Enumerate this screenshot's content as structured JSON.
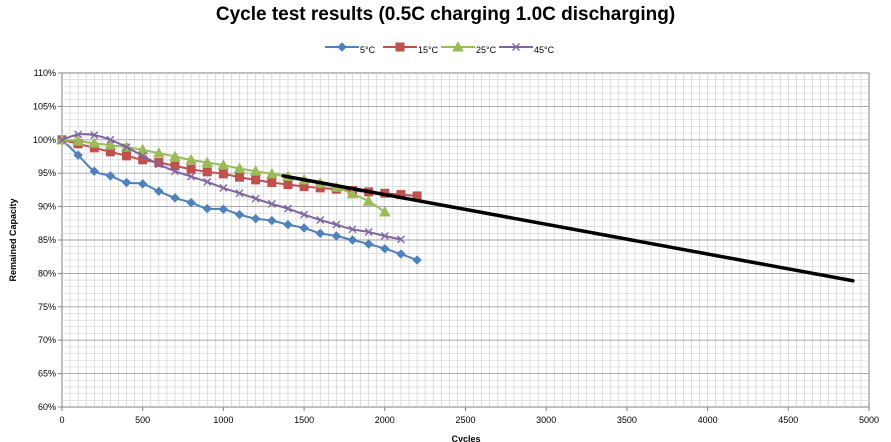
{
  "chart_data": {
    "type": "line",
    "title": "Cycle test results (0.5C charging 1.0C discharging)",
    "xlabel": "Cycles",
    "ylabel": "Remained Capacity",
    "xlim": [
      0,
      5000
    ],
    "ylim": [
      60,
      110
    ],
    "x_ticks": [
      0,
      500,
      1000,
      1500,
      2000,
      2500,
      3000,
      3500,
      4000,
      4500,
      5000
    ],
    "y_ticks": [
      "60%",
      "65%",
      "70%",
      "75%",
      "80%",
      "85%",
      "90%",
      "95%",
      "100%",
      "105%",
      "110%"
    ],
    "y_tick_values": [
      60,
      65,
      70,
      75,
      80,
      85,
      90,
      95,
      100,
      105,
      110
    ],
    "grid": true,
    "legend_position": "top-center",
    "series": [
      {
        "name": "5°C",
        "color": "#4F81BD",
        "marker": "diamond",
        "x": [
          0,
          100,
          200,
          300,
          400,
          500,
          600,
          700,
          800,
          900,
          1000,
          1100,
          1200,
          1300,
          1400,
          1500,
          1600,
          1700,
          1800,
          1900,
          2000,
          2100,
          2200
        ],
        "y": [
          100,
          97.7,
          95.3,
          94.6,
          93.6,
          93.4,
          92.3,
          91.3,
          90.6,
          89.7,
          89.6,
          88.8,
          88.2,
          87.9,
          87.3,
          86.8,
          86.0,
          85.6,
          85.0,
          84.4,
          83.7,
          82.9,
          82.0
        ]
      },
      {
        "name": "15°C",
        "color": "#C0504D",
        "marker": "square",
        "x": [
          0,
          100,
          200,
          300,
          400,
          500,
          600,
          700,
          800,
          900,
          1000,
          1100,
          1200,
          1300,
          1400,
          1500,
          1600,
          1700,
          1800,
          1900,
          2000,
          2100,
          2200
        ],
        "y": [
          100,
          99.4,
          98.8,
          98.2,
          97.6,
          97.0,
          96.6,
          96.1,
          95.6,
          95.2,
          94.9,
          94.4,
          94.0,
          93.6,
          93.3,
          93.0,
          92.8,
          92.6,
          92.4,
          92.2,
          92.0,
          91.8,
          91.6
        ]
      },
      {
        "name": "25°C",
        "color": "#9BBB59",
        "marker": "triangle",
        "x": [
          0,
          100,
          200,
          300,
          400,
          500,
          600,
          700,
          800,
          900,
          1000,
          1100,
          1200,
          1300,
          1400,
          1500,
          1600,
          1700,
          1800,
          1900,
          2000
        ],
        "y": [
          100,
          99.8,
          99.5,
          99.2,
          98.9,
          98.5,
          98.0,
          97.5,
          97.0,
          96.6,
          96.2,
          95.7,
          95.3,
          94.9,
          94.5,
          94.0,
          93.5,
          92.9,
          91.9,
          90.8,
          89.2
        ]
      },
      {
        "name": "45°C",
        "color": "#8064A2",
        "marker": "x",
        "x": [
          0,
          100,
          200,
          300,
          400,
          500,
          600,
          700,
          800,
          900,
          1000,
          1100,
          1200,
          1300,
          1400,
          1500,
          1600,
          1700,
          1800,
          1900,
          2000,
          2100
        ],
        "y": [
          100,
          100.8,
          100.7,
          100.0,
          98.9,
          97.6,
          96.3,
          95.3,
          94.5,
          93.7,
          92.8,
          92.0,
          91.2,
          90.4,
          89.7,
          88.8,
          88.0,
          87.3,
          86.6,
          86.2,
          85.6,
          85.1
        ]
      }
    ],
    "trend_line": {
      "color": "#000000",
      "x": [
        1370,
        4900
      ],
      "y": [
        94.6,
        78.9
      ]
    }
  }
}
